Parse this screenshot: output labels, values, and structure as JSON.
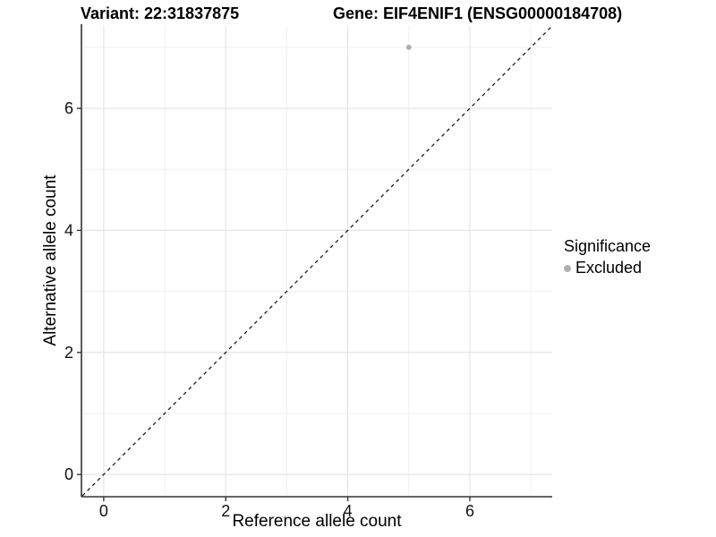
{
  "titles": {
    "variant": "Variant: 22:31837875",
    "gene": "Gene: EIF4ENIF1 (ENSG00000184708)"
  },
  "chart_data": {
    "type": "scatter",
    "title_left": "Variant: 22:31837875",
    "title_right": "Gene: EIF4ENIF1 (ENSG00000184708)",
    "xlabel": "Reference allele count",
    "ylabel": "Alternative allele count",
    "xlim": [
      -0.35,
      7.35
    ],
    "ylim": [
      -0.35,
      7.35
    ],
    "xticks": [
      0,
      2,
      4,
      6
    ],
    "yticks": [
      0,
      2,
      4,
      6
    ],
    "x_minor_gridlines": [
      1,
      3,
      5,
      7
    ],
    "y_minor_gridlines": [
      1,
      3,
      5,
      7
    ],
    "grid": true,
    "legend_position": "right",
    "series": [
      {
        "name": "Excluded",
        "color": "#b0b0b0",
        "points": [
          {
            "x": 5,
            "y": 7
          }
        ]
      }
    ],
    "reference_line": {
      "kind": "identity",
      "from": [
        -0.35,
        -0.35
      ],
      "to": [
        7.35,
        7.35
      ],
      "style": "dashed",
      "color": "#1a1a1a"
    }
  },
  "legend": {
    "title": "Significance",
    "items": [
      {
        "label": "Excluded",
        "color": "#b0b0b0"
      }
    ]
  },
  "style_colors": {
    "grid_major": "#e5e5e5",
    "grid_minor": "#f0f0f0",
    "axis_line": "#333333",
    "tick_text": "#111111",
    "background": "#ffffff"
  }
}
